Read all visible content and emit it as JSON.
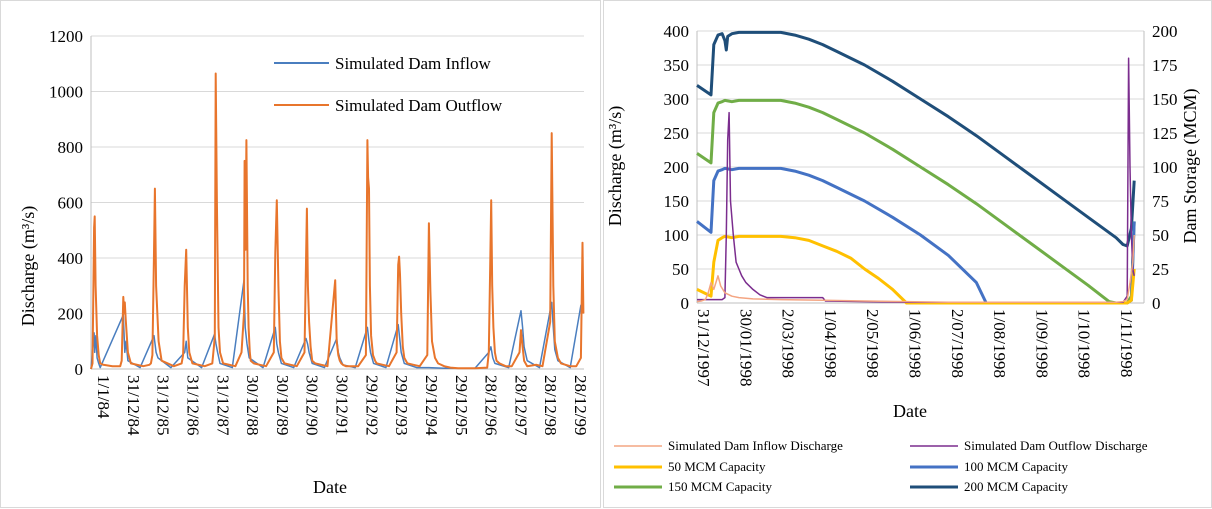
{
  "chart_data": [
    {
      "type": "line",
      "title": "",
      "xlabel": "Date",
      "ylabel": "Discharge (m³/s)",
      "ylim": [
        0,
        1200
      ],
      "yticks": [
        "0",
        "200",
        "400",
        "600",
        "800",
        "1000",
        "1200"
      ],
      "xtick_labels": [
        "1/1/84",
        "31/12/84",
        "31/12/85",
        "31/12/86",
        "31/12/87",
        "30/12/88",
        "30/12/89",
        "30/12/90",
        "30/12/91",
        "29/12/92",
        "29/12/93",
        "29/12/94",
        "29/12/95",
        "28/12/96",
        "28/12/97",
        "28/12/98",
        "28/12/99"
      ],
      "x_range_years": [
        1984.0,
        2000.05
      ],
      "grid": "horizontal",
      "legend": "top-right",
      "series": [
        {
          "name": "Simulated Dam Inflow",
          "color": "#4a7ebf",
          "x": [
            1984.0,
            1984.1,
            1984.12,
            1984.16,
            1984.2,
            1984.25,
            1984.3,
            1985.05,
            1985.1,
            1985.14,
            1985.2,
            1985.6,
            1986.05,
            1986.12,
            1986.18,
            1986.6,
            1987.05,
            1987.1,
            1987.15,
            1987.6,
            1988.02,
            1988.07,
            1988.12,
            1988.2,
            1988.6,
            1988.98,
            1989.02,
            1989.08,
            1989.15,
            1989.6,
            1990.0,
            1990.05,
            1990.1,
            1990.2,
            1990.6,
            1991.0,
            1991.05,
            1991.1,
            1991.2,
            1991.6,
            1992.0,
            1992.05,
            1992.1,
            1992.2,
            1992.6,
            1993.0,
            1993.05,
            1993.1,
            1993.2,
            1993.6,
            1994.0,
            1994.06,
            1994.1,
            1994.2,
            1994.6,
            1995.0,
            1995.5,
            1996.0,
            1996.5,
            1996.95,
            1997.02,
            1997.08,
            1997.15,
            1997.6,
            1998.0,
            1998.05,
            1998.1,
            1998.2,
            1998.6,
            1999.0,
            1999.05,
            1999.1,
            1999.2,
            1999.6,
            1999.95,
            2000.0
          ],
          "y": [
            0,
            130,
            60,
            120,
            40,
            20,
            5,
            195,
            60,
            100,
            30,
            5,
            120,
            60,
            40,
            5,
            60,
            100,
            40,
            5,
            125,
            90,
            60,
            20,
            5,
            320,
            150,
            90,
            40,
            5,
            150,
            90,
            60,
            20,
            5,
            110,
            90,
            60,
            20,
            5,
            110,
            60,
            40,
            15,
            5,
            150,
            100,
            60,
            20,
            5,
            160,
            100,
            60,
            20,
            5,
            5,
            3,
            3,
            3,
            60,
            80,
            40,
            20,
            5,
            210,
            150,
            80,
            30,
            5,
            240,
            150,
            70,
            30,
            5,
            230,
            210
          ]
        },
        {
          "name": "Simulated Dam Outflow",
          "color": "#e8752c",
          "x": [
            1984.0,
            1984.05,
            1984.1,
            1984.12,
            1984.15,
            1984.2,
            1984.25,
            1984.3,
            1984.4,
            1984.7,
            1984.95,
            1985.0,
            1985.05,
            1985.08,
            1985.1,
            1985.13,
            1985.2,
            1985.3,
            1985.7,
            1985.9,
            1985.95,
            1986.0,
            1986.05,
            1986.08,
            1986.12,
            1986.2,
            1986.3,
            1986.7,
            1986.95,
            1987.0,
            1987.05,
            1987.1,
            1987.15,
            1987.2,
            1987.3,
            1987.7,
            1987.95,
            1988.0,
            1988.03,
            1988.06,
            1988.1,
            1988.15,
            1988.2,
            1988.3,
            1988.7,
            1988.9,
            1988.98,
            1989.0,
            1989.03,
            1989.06,
            1989.1,
            1989.13,
            1989.17,
            1989.2,
            1989.3,
            1989.5,
            1989.7,
            1989.95,
            1990.0,
            1990.05,
            1990.1,
            1990.15,
            1990.2,
            1990.3,
            1990.5,
            1990.7,
            1990.95,
            1991.0,
            1991.03,
            1991.06,
            1991.1,
            1991.15,
            1991.2,
            1991.3,
            1991.5,
            1991.7,
            1991.95,
            1992.0,
            1992.05,
            1992.1,
            1992.15,
            1992.2,
            1992.3,
            1992.5,
            1992.7,
            1992.95,
            1993.0,
            1993.02,
            1993.05,
            1993.08,
            1993.12,
            1993.18,
            1993.25,
            1993.3,
            1993.5,
            1993.7,
            1993.95,
            1994.0,
            1994.03,
            1994.06,
            1994.1,
            1994.15,
            1994.2,
            1994.3,
            1994.5,
            1994.7,
            1994.95,
            1995.0,
            1995.05,
            1995.1,
            1995.2,
            1995.3,
            1995.5,
            1995.7,
            1995.95,
            1996.1,
            1996.5,
            1996.9,
            1996.95,
            1997.0,
            1997.03,
            1997.06,
            1997.1,
            1997.15,
            1997.2,
            1997.3,
            1997.5,
            1997.7,
            1997.95,
            1998.0,
            1998.05,
            1998.1,
            1998.2,
            1998.5,
            1998.7,
            1998.95,
            1999.0,
            1999.05,
            1999.1,
            1999.2,
            1999.3,
            1999.6,
            1999.8,
            1999.95,
            2000.0,
            2000.03
          ],
          "y": [
            0,
            20,
            510,
            550,
            300,
            120,
            50,
            20,
            15,
            10,
            10,
            30,
            260,
            200,
            240,
            180,
            60,
            20,
            10,
            15,
            20,
            50,
            420,
            650,
            300,
            100,
            30,
            10,
            20,
            50,
            300,
            430,
            150,
            60,
            20,
            10,
            20,
            80,
            120,
            1065,
            600,
            150,
            60,
            20,
            10,
            60,
            200,
            750,
            430,
            825,
            300,
            150,
            60,
            30,
            20,
            15,
            10,
            60,
            420,
            608,
            300,
            100,
            40,
            20,
            15,
            10,
            60,
            385,
            578,
            300,
            170,
            80,
            30,
            20,
            15,
            10,
            320,
            100,
            50,
            30,
            20,
            15,
            10,
            10,
            10,
            50,
            825,
            690,
            650,
            300,
            120,
            50,
            30,
            20,
            15,
            10,
            60,
            375,
            405,
            340,
            200,
            80,
            40,
            20,
            15,
            10,
            50,
            525,
            280,
            100,
            40,
            20,
            10,
            5,
            3,
            3,
            3,
            5,
            60,
            395,
            608,
            300,
            150,
            60,
            30,
            20,
            10,
            10,
            60,
            140,
            80,
            30,
            10,
            15,
            10,
            170,
            850,
            300,
            100,
            40,
            20,
            10,
            10,
            40,
            455,
            200
          ]
        }
      ]
    },
    {
      "type": "line",
      "title": "",
      "xlabel": "Date",
      "ylabel": "Discharge (m³/s)",
      "y2label": "Dam Storage (MCM)",
      "ylim": [
        0,
        400
      ],
      "y2lim": [
        0,
        200
      ],
      "yticks": [
        "0",
        "50",
        "100",
        "150",
        "200",
        "250",
        "300",
        "350",
        "400"
      ],
      "y2ticks": [
        "0",
        "25",
        "50",
        "75",
        "100",
        "125",
        "150",
        "175",
        "200"
      ],
      "xtick_labels": [
        "31/12/1997",
        "30/01/1998",
        "2/03/1998",
        "1/04/1998",
        "2/05/1998",
        "1/06/1998",
        "2/07/1998",
        "1/08/1998",
        "1/09/1998",
        "1/10/1998",
        "1/11/1998"
      ],
      "x_range_days": [
        0,
        320
      ],
      "grid": "horizontal",
      "legend": "bottom",
      "series": [
        {
          "name": "Simulated Dam Inflow Discharge",
          "color": "#f4a582",
          "axis": "left",
          "x": [
            0,
            3,
            6,
            8,
            10,
            12,
            15,
            17,
            20,
            25,
            30,
            40,
            60,
            90,
            120,
            150,
            180,
            210,
            240,
            270,
            300,
            305,
            308,
            310,
            312,
            313
          ],
          "y": [
            2,
            3,
            5,
            15,
            30,
            20,
            40,
            25,
            15,
            10,
            8,
            6,
            5,
            4,
            3,
            2,
            1,
            1,
            1,
            1,
            1,
            2,
            5,
            30,
            60,
            100
          ]
        },
        {
          "name": "Simulated Dam Outflow Discharge",
          "color": "#7b2d8e",
          "axis": "left",
          "x": [
            0,
            10,
            15,
            18,
            20,
            21,
            22,
            23,
            24,
            26,
            28,
            30,
            32,
            35,
            40,
            45,
            50,
            60,
            90,
            92,
            120,
            150,
            180,
            210,
            240,
            270,
            300,
            305,
            308,
            309,
            310,
            311,
            312,
            313
          ],
          "y": [
            5,
            5,
            5,
            5,
            8,
            100,
            240,
            280,
            150,
            100,
            60,
            50,
            40,
            30,
            20,
            12,
            8,
            8,
            8,
            3,
            2,
            1,
            1,
            1,
            1,
            1,
            1,
            1,
            10,
            360,
            200,
            100,
            50,
            40
          ]
        },
        {
          "name": "50 MCM Capacity",
          "color": "#ffc000",
          "axis": "right",
          "x": [
            0,
            10,
            12,
            15,
            18,
            20,
            25,
            30,
            40,
            50,
            60,
            70,
            80,
            90,
            100,
            110,
            120,
            130,
            140,
            150,
            160,
            170,
            180,
            190,
            200,
            220,
            240,
            260,
            280,
            300,
            305,
            308,
            311,
            313
          ],
          "y": [
            10,
            5,
            30,
            46,
            48,
            49,
            48,
            49,
            49,
            49,
            49,
            48,
            46,
            42,
            38,
            33,
            25,
            18,
            10,
            0,
            0,
            0,
            0,
            0,
            0,
            0,
            0,
            0,
            0,
            0,
            0,
            0,
            2,
            25
          ]
        },
        {
          "name": "100 MCM Capacity",
          "color": "#4472c4",
          "axis": "right",
          "x": [
            0,
            10,
            12,
            15,
            18,
            20,
            25,
            30,
            40,
            50,
            60,
            70,
            80,
            90,
            100,
            120,
            140,
            160,
            180,
            200,
            207,
            220,
            240,
            260,
            280,
            300,
            305,
            308,
            311,
            313
          ],
          "y": [
            60,
            52,
            90,
            97,
            98,
            99,
            98,
            99,
            99,
            99,
            99,
            97,
            94,
            90,
            85,
            75,
            63,
            50,
            35,
            15,
            0,
            0,
            0,
            0,
            0,
            0,
            0,
            0,
            2,
            60
          ]
        },
        {
          "name": "150 MCM Capacity",
          "color": "#70ad47",
          "axis": "right",
          "x": [
            0,
            10,
            12,
            15,
            18,
            20,
            25,
            30,
            40,
            50,
            60,
            70,
            80,
            90,
            100,
            120,
            140,
            160,
            180,
            200,
            220,
            240,
            260,
            280,
            290,
            295,
            300,
            305,
            308,
            311,
            313
          ],
          "y": [
            110,
            103,
            140,
            147,
            148,
            149,
            148,
            149,
            149,
            149,
            149,
            147,
            144,
            140,
            135,
            125,
            113,
            100,
            87,
            73,
            58,
            43,
            28,
            13,
            5,
            1,
            0,
            0,
            0,
            5,
            60
          ]
        },
        {
          "name": "200 MCM Capacity",
          "color": "#1f4e79",
          "axis": "right",
          "x": [
            0,
            10,
            12,
            15,
            18,
            20,
            21,
            22,
            25,
            30,
            40,
            50,
            60,
            70,
            80,
            90,
            100,
            120,
            140,
            160,
            180,
            200,
            220,
            240,
            260,
            280,
            300,
            305,
            308,
            311,
            313
          ],
          "y": [
            160,
            153,
            190,
            197,
            198,
            193,
            186,
            196,
            198,
            199,
            199,
            199,
            199,
            197,
            194,
            190,
            185,
            175,
            163,
            150,
            137,
            123,
            108,
            93,
            78,
            63,
            48,
            43,
            42,
            55,
            90
          ]
        }
      ]
    }
  ]
}
